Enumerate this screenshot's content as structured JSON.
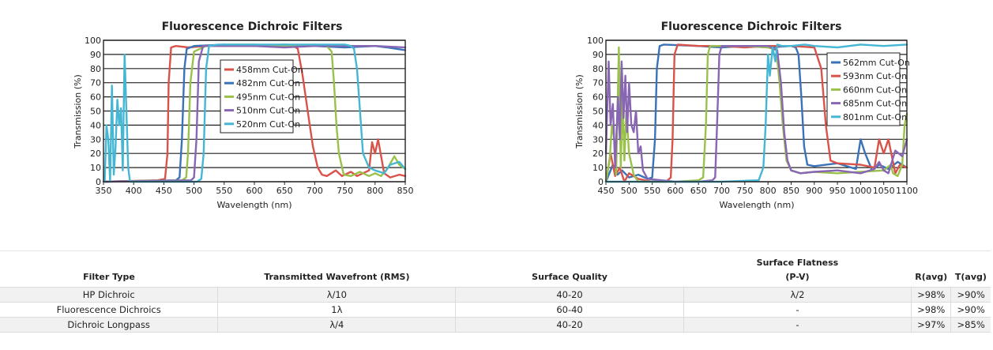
{
  "chart_data": [
    {
      "type": "line",
      "title": "Fluorescence Dichroic Filters",
      "xlabel": "Wavelength (nm)",
      "ylabel": "Transmission (%)",
      "xlim": [
        350,
        850
      ],
      "ylim": [
        0,
        100
      ],
      "xticks": [
        350,
        400,
        450,
        500,
        550,
        600,
        650,
        700,
        750,
        800,
        850
      ],
      "yticks": [
        0,
        10,
        20,
        30,
        40,
        50,
        60,
        70,
        80,
        90,
        100
      ],
      "grid": true,
      "legend": "top-center",
      "series": [
        {
          "name": "458mm Cut-On",
          "color": "#d9534a",
          "x": [
            350,
            440,
            452,
            456,
            458,
            462,
            470,
            490,
            520,
            560,
            600,
            640,
            665,
            672,
            680,
            690,
            697,
            705,
            712,
            720,
            735,
            745,
            760,
            770,
            790,
            795,
            800,
            805,
            815,
            825,
            840,
            850
          ],
          "y": [
            0,
            1,
            2,
            20,
            70,
            95,
            96,
            95,
            96,
            96,
            96,
            96,
            96,
            94,
            75,
            45,
            25,
            10,
            5,
            4,
            8,
            4,
            7,
            4,
            8,
            28,
            20,
            30,
            6,
            3,
            5,
            4
          ]
        },
        {
          "name": "482nm Cut-On",
          "color": "#3a73b8",
          "x": [
            350,
            470,
            476,
            480,
            484,
            488,
            500,
            550,
            600,
            650,
            700,
            750,
            800,
            820,
            850
          ],
          "y": [
            0,
            1,
            3,
            30,
            80,
            94,
            96,
            97,
            96,
            97,
            96,
            95,
            96,
            95,
            93
          ]
        },
        {
          "name": "495nm Cut-On",
          "color": "#9ac24a",
          "x": [
            350,
            480,
            487,
            490,
            494,
            500,
            520,
            560,
            600,
            650,
            700,
            720,
            728,
            732,
            736,
            740,
            748,
            760,
            775,
            790,
            800,
            810,
            820,
            832,
            840,
            850
          ],
          "y": [
            0,
            1,
            3,
            20,
            70,
            92,
            96,
            97,
            97,
            96,
            97,
            96,
            92,
            70,
            40,
            20,
            5,
            4,
            7,
            4,
            6,
            4,
            9,
            18,
            12,
            9
          ]
        },
        {
          "name": "510nm Cut-On",
          "color": "#8866b4",
          "x": [
            350,
            495,
            500,
            504,
            508,
            515,
            550,
            600,
            650,
            700,
            750,
            800,
            850
          ],
          "y": [
            0,
            1,
            3,
            30,
            85,
            96,
            96,
            96,
            95,
            96,
            96,
            96,
            95
          ]
        },
        {
          "name": "520nm Cut-On",
          "color": "#45b7d4",
          "x": [
            352,
            355,
            358,
            361,
            364,
            367,
            370,
            373,
            376,
            379,
            382,
            385,
            388,
            391,
            394,
            400,
            440,
            505,
            512,
            516,
            520,
            525,
            540,
            600,
            650,
            700,
            750,
            760,
            765,
            770,
            775,
            780,
            790,
            800,
            815,
            825,
            840,
            850
          ],
          "y": [
            0,
            40,
            30,
            0,
            68,
            5,
            25,
            58,
            40,
            52,
            8,
            90,
            50,
            10,
            0,
            0,
            0,
            0,
            2,
            20,
            80,
            96,
            97,
            97,
            97,
            97,
            97,
            96,
            94,
            80,
            50,
            20,
            10,
            8,
            6,
            12,
            14,
            9
          ]
        }
      ]
    },
    {
      "type": "line",
      "title": "Fluorescence Dichroic Filters",
      "xlabel": "Wavelength (nm)",
      "ylabel": "Transmission (%)",
      "xlim": [
        450,
        1100
      ],
      "ylim": [
        0,
        100
      ],
      "xticks": [
        450,
        500,
        550,
        600,
        650,
        700,
        750,
        800,
        850,
        900,
        950,
        1000,
        1050,
        1100
      ],
      "yticks": [
        0,
        10,
        20,
        30,
        40,
        50,
        60,
        70,
        80,
        90,
        100
      ],
      "grid": true,
      "legend": "top-right",
      "series": [
        {
          "name": "562mm Cut-On",
          "color": "#3a73b8",
          "x": [
            450,
            465,
            475,
            485,
            500,
            520,
            540,
            550,
            556,
            560,
            566,
            575,
            650,
            700,
            750,
            800,
            850,
            860,
            866,
            872,
            878,
            885,
            900,
            950,
            990,
            1000,
            1010,
            1025,
            1040,
            1060,
            1080,
            1100
          ],
          "y": [
            0,
            12,
            5,
            8,
            3,
            5,
            2,
            3,
            30,
            80,
            96,
            97,
            96,
            95,
            96,
            95,
            96,
            95,
            90,
            60,
            25,
            12,
            11,
            13,
            9,
            30,
            20,
            8,
            12,
            9,
            14,
            10
          ]
        },
        {
          "name": "593nm Cut-On",
          "color": "#d9534a",
          "x": [
            450,
            460,
            470,
            480,
            490,
            500,
            520,
            550,
            580,
            590,
            594,
            598,
            605,
            650,
            700,
            750,
            800,
            850,
            900,
            915,
            925,
            935,
            950,
            1000,
            1030,
            1040,
            1050,
            1060,
            1075,
            1085,
            1100
          ],
          "y": [
            0,
            20,
            4,
            10,
            0,
            6,
            2,
            0,
            0,
            3,
            30,
            90,
            97,
            96,
            96,
            95,
            96,
            96,
            95,
            80,
            40,
            15,
            13,
            12,
            10,
            30,
            20,
            30,
            6,
            12,
            10
          ]
        },
        {
          "name": "660nm Cut-On",
          "color": "#9ac24a",
          "x": [
            450,
            458,
            463,
            468,
            472,
            478,
            482,
            486,
            490,
            494,
            500,
            510,
            520,
            550,
            600,
            650,
            660,
            666,
            670,
            675,
            700,
            750,
            800,
            818,
            825,
            832,
            840,
            850,
            870,
            900,
            950,
            1000,
            1050,
            1065,
            1070,
            1080,
            1090,
            1095,
            1100
          ],
          "y": [
            0,
            15,
            40,
            30,
            5,
            95,
            10,
            60,
            15,
            50,
            20,
            5,
            0,
            0,
            0,
            1,
            3,
            40,
            90,
            96,
            96,
            96,
            95,
            93,
            70,
            40,
            15,
            8,
            6,
            7,
            6,
            7,
            8,
            12,
            6,
            4,
            12,
            40,
            48
          ]
        },
        {
          "name": "685nm Cut-On",
          "color": "#8866b4",
          "x": [
            450,
            456,
            460,
            465,
            470,
            476,
            480,
            484,
            488,
            492,
            496,
            500,
            505,
            510,
            515,
            520,
            525,
            530,
            540,
            600,
            650,
            680,
            686,
            690,
            695,
            700,
            750,
            800,
            820,
            828,
            835,
            842,
            850,
            870,
            900,
            950,
            1000,
            1030,
            1040,
            1050,
            1060,
            1075,
            1090,
            1100
          ],
          "y": [
            20,
            85,
            40,
            55,
            10,
            60,
            30,
            85,
            45,
            75,
            35,
            70,
            40,
            35,
            50,
            20,
            25,
            8,
            2,
            0,
            0,
            1,
            3,
            40,
            90,
            96,
            96,
            96,
            93,
            70,
            35,
            15,
            8,
            6,
            7,
            8,
            6,
            9,
            14,
            8,
            6,
            22,
            18,
            30
          ]
        },
        {
          "name": "801nm Cut-On",
          "color": "#45b7d4",
          "x": [
            450,
            500,
            600,
            700,
            780,
            790,
            795,
            800,
            804,
            810,
            816,
            820,
            830,
            850,
            880,
            900,
            950,
            1000,
            1050,
            1100
          ],
          "y": [
            0,
            0,
            0,
            0,
            1,
            10,
            40,
            90,
            75,
            95,
            85,
            97,
            96,
            96,
            97,
            96,
            95,
            97,
            96,
            97
          ]
        }
      ]
    }
  ],
  "table": {
    "headers": {
      "filter_type": "Filter Type",
      "wavefront": "Transmitted Wavefront (RMS)",
      "surface_quality": "Surface Quality",
      "flatness_line1": "Surface Flatness",
      "flatness_line2": "(P-V)",
      "ravg": "R(avg)",
      "tavg": "T(avg)"
    },
    "rows": [
      {
        "filter_type": "HP Dichroic",
        "wavefront": "λ/10",
        "surface_quality": "40-20",
        "flatness": "λ/2",
        "ravg": ">98%",
        "tavg": ">90%"
      },
      {
        "filter_type": "Fluorescence Dichroics",
        "wavefront": "1λ",
        "surface_quality": "60-40",
        "flatness": "-",
        "ravg": ">98%",
        "tavg": ">90%"
      },
      {
        "filter_type": "Dichroic Longpass",
        "wavefront": "λ/4",
        "surface_quality": "40-20",
        "flatness": "-",
        "ravg": ">97%",
        "tavg": ">85%"
      }
    ]
  }
}
